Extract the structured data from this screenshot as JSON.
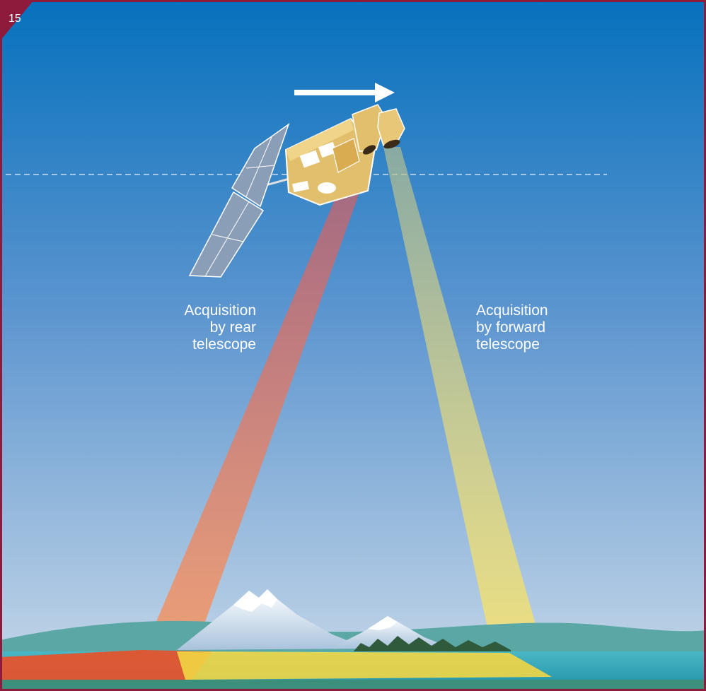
{
  "figure": {
    "number": "15"
  },
  "labels": {
    "rear": [
      "Acquisition",
      "by rear",
      "telescope"
    ],
    "forward": [
      "Acquisition",
      "by forward",
      "telescope"
    ]
  },
  "colors": {
    "frame": "#8e1b3b",
    "sky_top": "#0671bd",
    "sky_bottom": "#c8d8e8",
    "rear_beam": "#d56a5a",
    "forward_beam": "#e8dd80",
    "satellite_body": "#e2bf6c",
    "solar_panel": "#8a9eb8"
  },
  "icons": {
    "direction": "arrow-right-icon",
    "satellite": "satellite-icon",
    "orbit": "dashed-orbit-line"
  }
}
